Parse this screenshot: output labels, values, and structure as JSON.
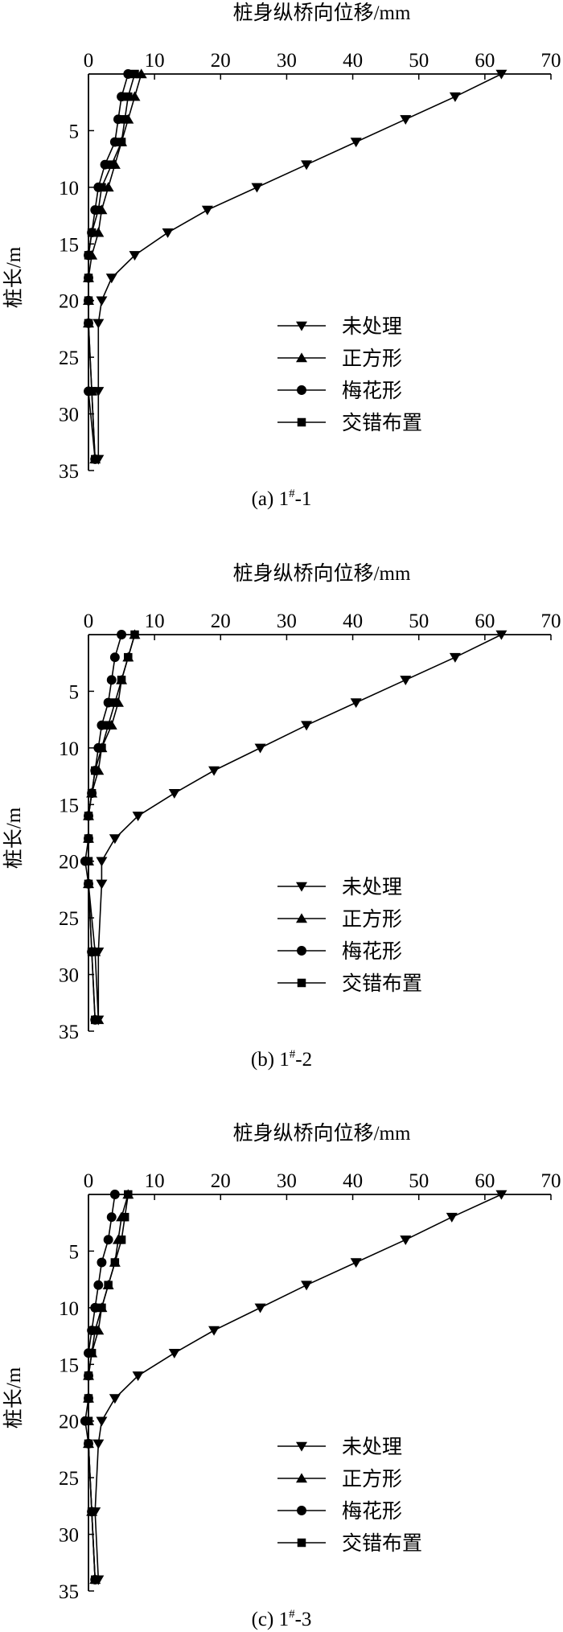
{
  "chart_data": [
    {
      "type": "line",
      "caption_prefix": "(a) 1",
      "caption_sup": "#",
      "caption_suffix": "-1",
      "xlabel": "桩身纵桥向位移/mm",
      "ylabel": "桩长/m",
      "xlim": [
        0,
        70
      ],
      "ylim": [
        0,
        35
      ],
      "x_ticks": [
        0,
        10,
        20,
        30,
        40,
        50,
        60,
        70
      ],
      "y_ticks": [
        5,
        10,
        15,
        20,
        25,
        30,
        35
      ],
      "grid": false,
      "legend_position": "right-middle",
      "series": [
        {
          "name": "未处理",
          "marker": "triangle-down",
          "points": [
            [
              62.5,
              0
            ],
            [
              55.5,
              2
            ],
            [
              48,
              4
            ],
            [
              40.5,
              6
            ],
            [
              33,
              8
            ],
            [
              25.5,
              10
            ],
            [
              18,
              12
            ],
            [
              12,
              14
            ],
            [
              7,
              16
            ],
            [
              3.5,
              18
            ],
            [
              2,
              20
            ],
            [
              1.5,
              22
            ],
            [
              1.5,
              28
            ],
            [
              1.5,
              34
            ]
          ]
        },
        {
          "name": "正方形",
          "marker": "triangle-up",
          "points": [
            [
              8,
              0
            ],
            [
              7,
              2
            ],
            [
              6,
              4
            ],
            [
              5,
              6
            ],
            [
              4,
              8
            ],
            [
              3,
              10
            ],
            [
              2,
              12
            ],
            [
              1.5,
              14
            ],
            [
              0.5,
              16
            ],
            [
              0,
              18
            ],
            [
              0,
              20
            ],
            [
              0,
              22
            ],
            [
              0.5,
              28
            ],
            [
              1,
              34
            ]
          ]
        },
        {
          "name": "梅花形",
          "marker": "circle",
          "points": [
            [
              6,
              0
            ],
            [
              5,
              2
            ],
            [
              4.5,
              4
            ],
            [
              4,
              6
            ],
            [
              2.5,
              8
            ],
            [
              1.5,
              10
            ],
            [
              1,
              12
            ],
            [
              0.5,
              14
            ],
            [
              0,
              16
            ],
            [
              0,
              18
            ],
            [
              0,
              20
            ],
            [
              0,
              22
            ],
            [
              0,
              28
            ],
            [
              1,
              34
            ]
          ]
        },
        {
          "name": "交错布置",
          "marker": "square",
          "points": [
            [
              7,
              0
            ],
            [
              6,
              2
            ],
            [
              5.5,
              4
            ],
            [
              5,
              6
            ],
            [
              3.5,
              8
            ],
            [
              2,
              10
            ],
            [
              1.5,
              12
            ],
            [
              0.5,
              14
            ],
            [
              0,
              16
            ],
            [
              0,
              18
            ],
            [
              0,
              20
            ],
            [
              0,
              22
            ],
            [
              0.5,
              28
            ],
            [
              1,
              34
            ]
          ]
        }
      ]
    },
    {
      "type": "line",
      "caption_prefix": "(b) 1",
      "caption_sup": "#",
      "caption_suffix": "-2",
      "xlabel": "桩身纵桥向位移/mm",
      "ylabel": "桩长/m",
      "xlim": [
        0,
        70
      ],
      "ylim": [
        0,
        35
      ],
      "x_ticks": [
        0,
        10,
        20,
        30,
        40,
        50,
        60,
        70
      ],
      "y_ticks": [
        5,
        10,
        15,
        20,
        25,
        30,
        35
      ],
      "grid": false,
      "legend_position": "right-middle",
      "series": [
        {
          "name": "未处理",
          "marker": "triangle-down",
          "points": [
            [
              62.5,
              0
            ],
            [
              55.5,
              2
            ],
            [
              48,
              4
            ],
            [
              40.5,
              6
            ],
            [
              33,
              8
            ],
            [
              26,
              10
            ],
            [
              19,
              12
            ],
            [
              13,
              14
            ],
            [
              7.5,
              16
            ],
            [
              4,
              18
            ],
            [
              2,
              20
            ],
            [
              2,
              22
            ],
            [
              1.5,
              28
            ],
            [
              1.5,
              34
            ]
          ]
        },
        {
          "name": "正方形",
          "marker": "triangle-up",
          "points": [
            [
              7,
              0
            ],
            [
              6,
              2
            ],
            [
              5,
              4
            ],
            [
              4.5,
              6
            ],
            [
              3.5,
              8
            ],
            [
              2,
              10
            ],
            [
              1.5,
              12
            ],
            [
              0.5,
              14
            ],
            [
              0,
              16
            ],
            [
              0,
              18
            ],
            [
              0,
              20
            ],
            [
              0,
              22
            ],
            [
              1,
              28
            ],
            [
              1.5,
              34
            ]
          ]
        },
        {
          "name": "梅花形",
          "marker": "circle",
          "points": [
            [
              5,
              0
            ],
            [
              4,
              2
            ],
            [
              3.5,
              4
            ],
            [
              3,
              6
            ],
            [
              2,
              8
            ],
            [
              1.5,
              10
            ],
            [
              1,
              12
            ],
            [
              0.5,
              14
            ],
            [
              0,
              16
            ],
            [
              0,
              18
            ],
            [
              -0.5,
              20
            ],
            [
              0,
              22
            ],
            [
              0.5,
              28
            ],
            [
              1,
              34
            ]
          ]
        },
        {
          "name": "交错布置",
          "marker": "square",
          "points": [
            [
              7,
              0
            ],
            [
              6,
              2
            ],
            [
              5,
              4
            ],
            [
              4,
              6
            ],
            [
              3,
              8
            ],
            [
              2,
              10
            ],
            [
              1,
              12
            ],
            [
              0.5,
              14
            ],
            [
              0,
              16
            ],
            [
              0,
              18
            ],
            [
              0,
              20
            ],
            [
              0,
              22
            ],
            [
              0.5,
              28
            ],
            [
              1,
              34
            ]
          ]
        }
      ]
    },
    {
      "type": "line",
      "caption_prefix": "(c) 1",
      "caption_sup": "#",
      "caption_suffix": "-3",
      "xlabel": "桩身纵桥向位移/mm",
      "ylabel": "桩长/m",
      "xlim": [
        0,
        70
      ],
      "ylim": [
        0,
        35
      ],
      "x_ticks": [
        0,
        10,
        20,
        30,
        40,
        50,
        60,
        70
      ],
      "y_ticks": [
        5,
        10,
        15,
        20,
        25,
        30,
        35
      ],
      "grid": false,
      "legend_position": "right-middle",
      "series": [
        {
          "name": "未处理",
          "marker": "triangle-down",
          "points": [
            [
              62.5,
              0
            ],
            [
              55,
              2
            ],
            [
              48,
              4
            ],
            [
              40.5,
              6
            ],
            [
              33,
              8
            ],
            [
              26,
              10
            ],
            [
              19,
              12
            ],
            [
              13,
              14
            ],
            [
              7.5,
              16
            ],
            [
              4,
              18
            ],
            [
              2,
              20
            ],
            [
              1.5,
              22
            ],
            [
              1,
              28
            ],
            [
              1.5,
              34
            ]
          ]
        },
        {
          "name": "正方形",
          "marker": "triangle-up",
          "points": [
            [
              6,
              0
            ],
            [
              5,
              2
            ],
            [
              4.5,
              4
            ],
            [
              4,
              6
            ],
            [
              3,
              8
            ],
            [
              2,
              10
            ],
            [
              1.5,
              12
            ],
            [
              0.5,
              14
            ],
            [
              0,
              16
            ],
            [
              0,
              18
            ],
            [
              0,
              20
            ],
            [
              0,
              22
            ],
            [
              0.5,
              28
            ],
            [
              1,
              34
            ]
          ]
        },
        {
          "name": "梅花形",
          "marker": "circle",
          "points": [
            [
              4,
              0
            ],
            [
              3.5,
              2
            ],
            [
              3,
              4
            ],
            [
              2,
              6
            ],
            [
              1.5,
              8
            ],
            [
              1,
              10
            ],
            [
              0.5,
              12
            ],
            [
              0,
              14
            ],
            [
              0,
              16
            ],
            [
              0,
              18
            ],
            [
              -0.5,
              20
            ],
            [
              0,
              22
            ],
            [
              0.5,
              28
            ],
            [
              1,
              34
            ]
          ]
        },
        {
          "name": "交错布置",
          "marker": "square",
          "points": [
            [
              6,
              0
            ],
            [
              5.5,
              2
            ],
            [
              5,
              4
            ],
            [
              4,
              6
            ],
            [
              3,
              8
            ],
            [
              2,
              10
            ],
            [
              1,
              12
            ],
            [
              0.5,
              14
            ],
            [
              0,
              16
            ],
            [
              0,
              18
            ],
            [
              0,
              20
            ],
            [
              0,
              22
            ],
            [
              0.5,
              28
            ],
            [
              1,
              34
            ]
          ]
        }
      ]
    }
  ]
}
